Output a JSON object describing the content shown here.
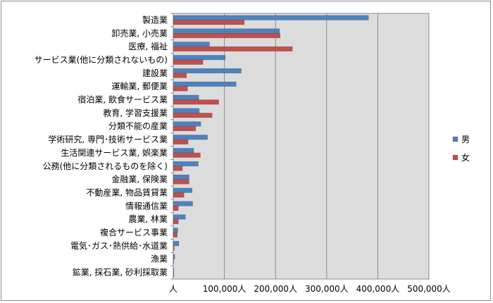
{
  "chart_data": {
    "type": "bar",
    "orientation": "horizontal",
    "categories": [
      "製造業",
      "卸売業, 小売業",
      "医療, 福祉",
      "サービス業(他に分類されないもの)",
      "建設業",
      "運輸業, 郵便業",
      "宿泊業, 飲食サービス業",
      "教育, 学習支援業",
      "分類不能の産業",
      "学術研究, 専門･技術サービス業",
      "生活関連サービス業, 娯楽業",
      "公務(他に分類されるものを除く)",
      "金融業, 保険業",
      "不動産業, 物品賃貸業",
      "情報通信業",
      "農業, 林業",
      "複合サービス事業",
      "電気･ガス･熱供給･水道業",
      "漁業",
      "鉱業, 採石業, 砂利採取業"
    ],
    "series": [
      {
        "name": "男",
        "color": "#4f81bd",
        "values": [
          382000,
          208000,
          71000,
          102000,
          133000,
          123000,
          50000,
          51000,
          54000,
          67000,
          40000,
          49000,
          31000,
          37000,
          38000,
          24000,
          9000,
          11000,
          3000,
          1000
        ]
      },
      {
        "name": "女",
        "color": "#c0504d",
        "values": [
          139000,
          209000,
          233000,
          58000,
          26000,
          28000,
          89000,
          76000,
          44000,
          29000,
          53000,
          18000,
          31000,
          21000,
          10000,
          10000,
          8000,
          2000,
          1000,
          500
        ]
      }
    ],
    "xlim": [
      0,
      500000
    ],
    "xticks": [
      0,
      100000,
      200000,
      300000,
      400000,
      500000
    ],
    "xtick_labels": [
      "人",
      "100,000人",
      "200,000人",
      "300,000人",
      "400,000人",
      "500,000人"
    ],
    "grid": true,
    "legend_position": "right",
    "plot_background": "#dcdcdc"
  }
}
